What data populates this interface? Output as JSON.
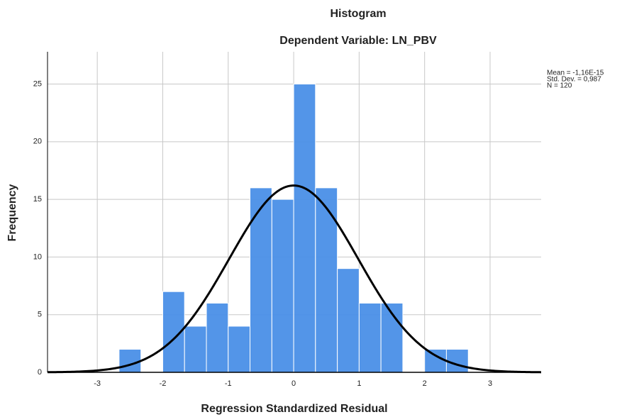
{
  "chart_data": {
    "type": "histogram",
    "title": "Histogram",
    "subtitle": "Dependent Variable: LN_PBV",
    "x_label": "Regression Standardized Residual",
    "y_label": "Frequency",
    "bins": [
      -2.667,
      -2.333,
      -2,
      -1.667,
      -1.333,
      -1,
      -0.667,
      -0.333,
      0,
      0.333,
      0.667,
      1,
      1.333,
      1.667,
      2,
      2.333,
      2.667
    ],
    "values": [
      2,
      0,
      7,
      4,
      6,
      4,
      16,
      15,
      25,
      16,
      9,
      6,
      6,
      0,
      2,
      2
    ],
    "color": "#4a8fe7",
    "curve_color": "#000000",
    "normal_curve": {
      "mean": -1.16e-15,
      "sd": 0.987,
      "n": 120,
      "labels": [
        "Mean = -1,16E-15",
        "Std. Dev. = 0,987",
        "N = 120"
      ]
    },
    "xlim": [
      -3.76,
      3.78
    ],
    "xticks": [
      -3,
      -2,
      -1,
      0,
      1,
      2,
      3
    ],
    "ylim": [
      0,
      27.8
    ],
    "yticks": [
      0,
      5,
      10,
      15,
      20,
      25
    ],
    "grid": true
  }
}
